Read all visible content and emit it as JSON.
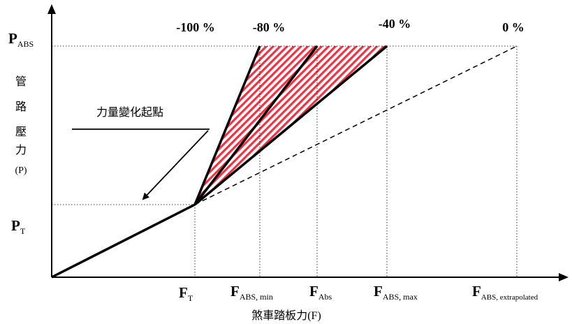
{
  "top_labels": [
    "-100 %",
    "-80 %",
    "-40 %",
    "0 %"
  ],
  "y_axis": {
    "p_abs": {
      "main": "P",
      "sub": "ABS"
    },
    "p_t": {
      "main": "P",
      "sub": "T"
    },
    "label_chars": [
      "管",
      "路",
      "壓",
      "力"
    ],
    "label_unit": "(P)"
  },
  "x_axis": {
    "ticks": [
      {
        "main": "F",
        "sub": "T"
      },
      {
        "main": "F",
        "sub": "ABS, min"
      },
      {
        "main": "F",
        "sub": "Abs"
      },
      {
        "main": "F",
        "sub": "ABS, max"
      },
      {
        "main": "F",
        "sub": "ABS, extrapolated"
      }
    ],
    "label": "煞車踏板力(F)"
  },
  "annotation": "力量變化起點",
  "colors": {
    "hatch": "#ee3344",
    "line": "#000000"
  }
}
